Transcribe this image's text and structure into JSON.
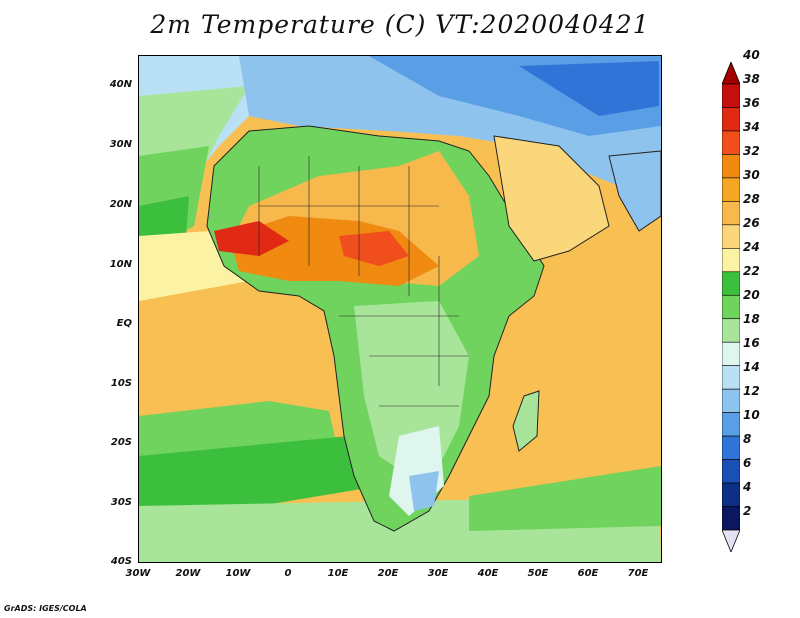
{
  "title": "2m Temperature (C) VT:2020040421",
  "footer": "GrADS: IGES/COLA",
  "axes": {
    "y_labels": [
      "40N",
      "30N",
      "20N",
      "10N",
      "EQ",
      "10S",
      "20S",
      "30S",
      "40S"
    ],
    "x_labels": [
      "30W",
      "20W",
      "10W",
      "0",
      "10E",
      "20E",
      "30E",
      "40E",
      "50E",
      "60E",
      "70E"
    ]
  },
  "map": {
    "lat_range": [
      -40,
      45
    ],
    "lon_range": [
      -30,
      75
    ]
  },
  "colorbar": {
    "labels": [
      "40",
      "38",
      "36",
      "34",
      "32",
      "30",
      "28",
      "26",
      "24",
      "22",
      "20",
      "18",
      "16",
      "14",
      "12",
      "10",
      "8",
      "6",
      "4",
      "2"
    ],
    "colors": {
      "40": "#a40000",
      "38": "#c40f0f",
      "36": "#e02a14",
      "34": "#f04e1c",
      "32": "#f08a10",
      "30": "#f5a623",
      "28": "#f7b84c",
      "26": "#fad77a",
      "24": "#fbf2a4",
      "22": "#3cbf3c",
      "20": "#6fd35d",
      "18": "#a8e59a",
      "16": "#dff6ef",
      "14": "#b9e0f5",
      "12": "#8ec3ee",
      "10": "#5a9ee5",
      "8": "#2f74d6",
      "6": "#1a4fb5",
      "4": "#0d2f86",
      "2": "#0a1860"
    },
    "below_color": "#e6e2f6",
    "above_color": "#a40000"
  }
}
